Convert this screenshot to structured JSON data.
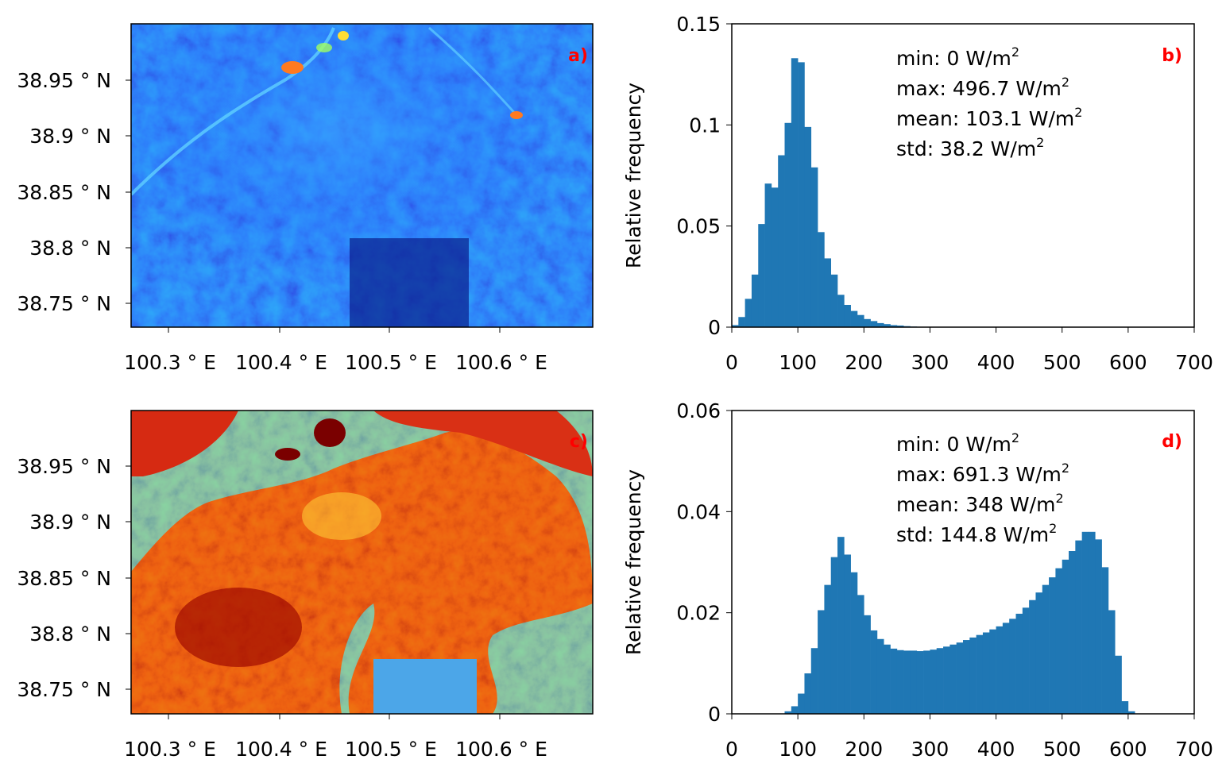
{
  "maps": [
    {
      "panel_label": "a)",
      "colormap": "blue",
      "x_ticks": [
        "100.3$^\\circ$E",
        "100.4$^\\circ$E",
        "100.5$^\\circ$E",
        "100.6$^\\circ$E"
      ],
      "x_tick_labels": [
        "100.3 ° E",
        "100.4 ° E",
        "100.5 ° E",
        "100.6 ° E"
      ],
      "y_tick_labels": [
        "38.95 ° N",
        "38.9 ° N",
        "38.85 ° N",
        "38.8 ° N",
        "38.75 ° N"
      ]
    },
    {
      "panel_label": "c)",
      "colormap": "jet-hot",
      "x_tick_labels": [
        "100.3 ° E",
        "100.4 ° E",
        "100.5 ° E",
        "100.6 ° E"
      ],
      "y_tick_labels": [
        "38.95 ° N",
        "38.9 ° N",
        "38.85 ° N",
        "38.8 ° N",
        "38.75 ° N"
      ]
    }
  ],
  "chart_data": [
    {
      "type": "bar",
      "panel_label": "b)",
      "ylabel": "Relative frequency",
      "xlabel": "",
      "xlim": [
        0,
        700
      ],
      "ylim": [
        0,
        0.15
      ],
      "x_ticks": [
        "0",
        "100",
        "200",
        "300",
        "400",
        "500",
        "600",
        "700"
      ],
      "y_ticks": [
        "0",
        "0.05",
        "0.1",
        "0.15"
      ],
      "bin_width": 10,
      "bin_starts": [
        0,
        10,
        20,
        30,
        40,
        50,
        60,
        70,
        80,
        90,
        100,
        110,
        120,
        130,
        140,
        150,
        160,
        170,
        180,
        190,
        200,
        210,
        220,
        230,
        240,
        250,
        260,
        270,
        280,
        290
      ],
      "values": [
        0.001,
        0.005,
        0.014,
        0.026,
        0.051,
        0.071,
        0.069,
        0.085,
        0.101,
        0.133,
        0.131,
        0.099,
        0.079,
        0.047,
        0.034,
        0.026,
        0.016,
        0.011,
        0.008,
        0.006,
        0.004,
        0.003,
        0.002,
        0.0015,
        0.001,
        0.0008,
        0.0005,
        0.0003,
        0.0002,
        0.0001
      ],
      "color": "#1f77b4",
      "stats": [
        {
          "text": "min: 0 W/m",
          "sup": "2"
        },
        {
          "text": "max: 496.7 W/m",
          "sup": "2"
        },
        {
          "text": "mean: 103.1 W/m",
          "sup": "2"
        },
        {
          "text": "std: 38.2 W/m",
          "sup": "2"
        }
      ]
    },
    {
      "type": "bar",
      "panel_label": "d)",
      "ylabel": "Relative frequency",
      "xlabel": "",
      "xlim": [
        0,
        700
      ],
      "ylim": [
        0,
        0.06
      ],
      "x_ticks": [
        "0",
        "100",
        "200",
        "300",
        "400",
        "500",
        "600",
        "700"
      ],
      "y_ticks": [
        "0",
        "0.02",
        "0.04",
        "0.06"
      ],
      "bin_width": 10,
      "bin_starts": [
        80,
        90,
        100,
        110,
        120,
        130,
        140,
        150,
        160,
        170,
        180,
        190,
        200,
        210,
        220,
        230,
        240,
        250,
        260,
        270,
        280,
        290,
        300,
        310,
        320,
        330,
        340,
        350,
        360,
        370,
        380,
        390,
        400,
        410,
        420,
        430,
        440,
        450,
        460,
        470,
        480,
        490,
        500,
        510,
        520,
        530,
        540,
        550,
        560,
        570,
        580,
        590,
        600
      ],
      "values": [
        0.0005,
        0.0015,
        0.004,
        0.008,
        0.013,
        0.0205,
        0.0255,
        0.031,
        0.035,
        0.0315,
        0.028,
        0.0235,
        0.0195,
        0.0165,
        0.0148,
        0.0137,
        0.0129,
        0.0126,
        0.0125,
        0.0125,
        0.0124,
        0.0125,
        0.0127,
        0.013,
        0.0133,
        0.0137,
        0.0141,
        0.0146,
        0.0151,
        0.0156,
        0.0161,
        0.0167,
        0.0173,
        0.018,
        0.0188,
        0.0198,
        0.021,
        0.0225,
        0.024,
        0.0255,
        0.027,
        0.0288,
        0.0305,
        0.0322,
        0.0343,
        0.036,
        0.036,
        0.0345,
        0.029,
        0.0205,
        0.0115,
        0.0025,
        0.0005
      ],
      "color": "#1f77b4",
      "stats": [
        {
          "text": "min: 0 W/m",
          "sup": "2"
        },
        {
          "text": "max: 691.3 W/m",
          "sup": "2"
        },
        {
          "text": "mean: 348 W/m",
          "sup": "2"
        },
        {
          "text": "std: 144.8 W/m",
          "sup": "2"
        }
      ]
    }
  ]
}
